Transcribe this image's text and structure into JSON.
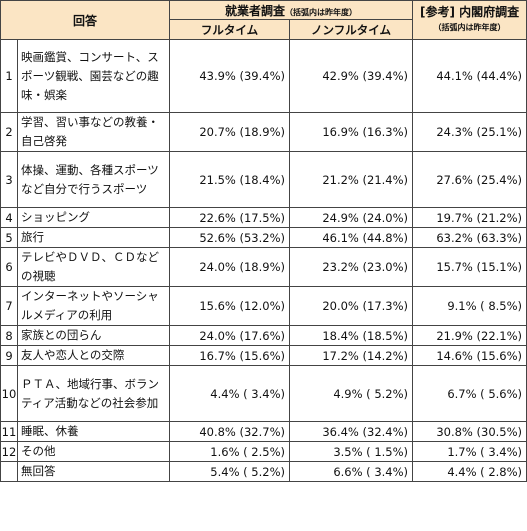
{
  "header": {
    "answer": "回答",
    "survey": "就業者調査",
    "survey_note": "（括弧内は昨年度）",
    "ref": "[参考] 内閣府調査",
    "ref_note": "（括弧内は昨年度）",
    "col_full": "フルタイム",
    "col_nonfull": "ノンフルタイム"
  },
  "rows": [
    {
      "no": "1",
      "item": "映画鑑賞、コンサート、スポーツ観戦、園芸などの趣味・娯楽",
      "full": "43.9% (39.4%)",
      "nonfull": "42.9% (39.4%)",
      "ref": "44.1% (44.4%)"
    },
    {
      "no": "2",
      "item": "学習、習い事などの教養・自己啓発",
      "full": "20.7% (18.9%)",
      "nonfull": "16.9% (16.3%)",
      "ref": "24.3% (25.1%)"
    },
    {
      "no": "3",
      "item": "体操、運動、各種スポーツなど自分で行うスポーツ",
      "full": "21.5% (18.4%)",
      "nonfull": "21.2% (21.4%)",
      "ref": "27.6% (25.4%)"
    },
    {
      "no": "4",
      "item": "ショッピング",
      "full": "22.6% (17.5%)",
      "nonfull": "24.9% (24.0%)",
      "ref": "19.7% (21.2%)"
    },
    {
      "no": "5",
      "item": "旅行",
      "full": "52.6% (53.2%)",
      "nonfull": "46.1% (44.8%)",
      "ref": "63.2% (63.3%)"
    },
    {
      "no": "6",
      "item": "テレビやＤＶＤ、ＣＤなどの視聴",
      "full": "24.0% (18.9%)",
      "nonfull": "23.2% (23.0%)",
      "ref": "15.7% (15.1%)"
    },
    {
      "no": "7",
      "item": "インターネットやソーシャルメディアの利用",
      "full": "15.6% (12.0%)",
      "nonfull": "20.0% (17.3%)",
      "ref": "9.1% ( 8.5%)"
    },
    {
      "no": "8",
      "item": "家族との団らん",
      "full": "24.0% (17.6%)",
      "nonfull": "18.4% (18.5%)",
      "ref": "21.9% (22.1%)"
    },
    {
      "no": "9",
      "item": "友人や恋人との交際",
      "full": "16.7% (15.6%)",
      "nonfull": "17.2% (14.2%)",
      "ref": "14.6% (15.6%)"
    },
    {
      "no": "10",
      "item": "ＰＴＡ、地域行事、ボランティア活動などの社会参加",
      "full": "4.4% ( 3.4%)",
      "nonfull": "4.9% ( 5.2%)",
      "ref": "6.7% ( 5.6%)"
    },
    {
      "no": "11",
      "item": "睡眠、休養",
      "full": "40.8% (32.7%)",
      "nonfull": "36.4% (32.4%)",
      "ref": "30.8% (30.5%)"
    },
    {
      "no": "12",
      "item": "その他",
      "full": "1.6% ( 2.5%)",
      "nonfull": "3.5% ( 1.5%)",
      "ref": "1.7% ( 3.4%)"
    },
    {
      "no": "",
      "item": "無回答",
      "full": "5.4% ( 5.2%)",
      "nonfull": "6.6% ( 3.4%)",
      "ref": "4.4% ( 2.8%)"
    }
  ]
}
